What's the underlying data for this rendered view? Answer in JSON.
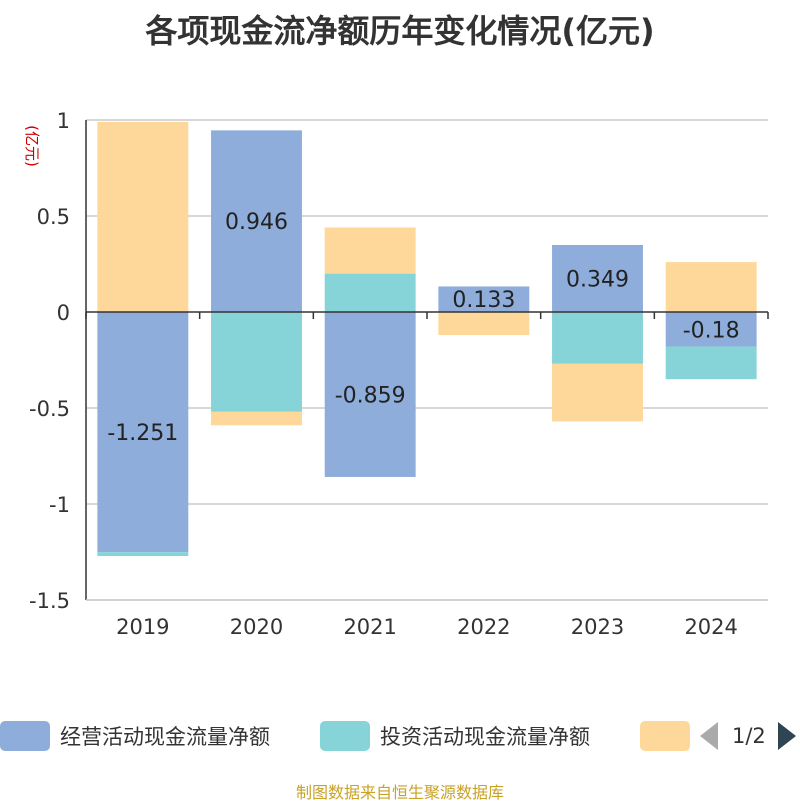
{
  "title": "各项现金流净额历年变化情况(亿元)",
  "source": "制图数据来自恒生聚源数据库",
  "legend": {
    "items": [
      {
        "label": "经营活动现金流量净额",
        "color": "#8eadda"
      },
      {
        "label": "投资活动现金流量净额",
        "color": "#86d4d8"
      },
      {
        "label": "",
        "color": "#fdd89a"
      }
    ],
    "pager": "1/2",
    "prev_icon": "triangle-left-icon",
    "next_icon": "triangle-right-icon"
  },
  "chart_data": {
    "type": "bar",
    "stacked": true,
    "title": "各项现金流净额历年变化情况(亿元)",
    "ylabel": "(亿元)",
    "categories": [
      "2019",
      "2020",
      "2021",
      "2022",
      "2023",
      "2024"
    ],
    "ylim": [
      -1.5,
      1
    ],
    "yticks": [
      1,
      0.5,
      0,
      -0.5,
      -1,
      -1.5
    ],
    "ytick_labels": [
      "1",
      "0.5",
      "0",
      "-0.5",
      "-1",
      "-1.5"
    ],
    "grid": true,
    "legend_position": "bottom",
    "series": [
      {
        "name": "经营活动现金流量净额",
        "color": "#8eadda",
        "values": [
          -1.251,
          0.946,
          -0.859,
          0.133,
          0.349,
          -0.18
        ],
        "labels": [
          "-1.251",
          "0.946",
          "-0.859",
          "0.133",
          "0.349",
          "-0.18"
        ]
      },
      {
        "name": "投资活动现金流量净额",
        "color": "#86d4d8",
        "values": [
          -0.02,
          -0.52,
          0.2,
          0.0,
          -0.27,
          -0.17
        ]
      },
      {
        "color": "#fdd89a",
        "values": [
          0.99,
          -0.07,
          0.24,
          -0.12,
          -0.3,
          0.26
        ]
      }
    ]
  }
}
